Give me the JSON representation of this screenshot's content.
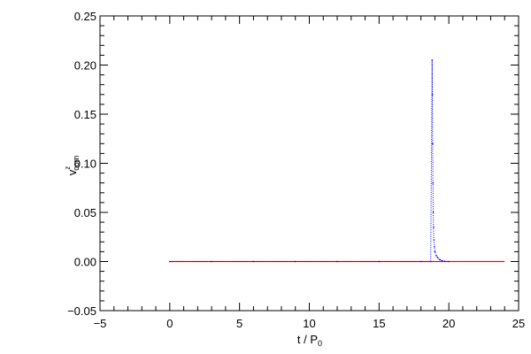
{
  "chart_data": {
    "type": "line",
    "title": "",
    "xlabel": {
      "base": "t / P",
      "subscript": "0"
    },
    "ylabel": {
      "base": "v",
      "superscript": "z",
      "subscript": "com"
    },
    "xlim": [
      -5,
      25
    ],
    "ylim": [
      -0.05,
      0.25
    ],
    "xticks": [
      "−5",
      "0",
      "5",
      "10",
      "15",
      "20",
      "25"
    ],
    "yticks": [
      "−0.05",
      "0.00",
      "0.05",
      "0.10",
      "0.15",
      "0.20",
      "0.25"
    ],
    "grid": false,
    "legend": "none",
    "series": [
      {
        "color": "#ff0000",
        "style": "line",
        "x": [
          0,
          24
        ],
        "y": [
          0,
          0
        ]
      },
      {
        "color": "#0000ff",
        "style": "dots",
        "x": [
          0,
          3,
          6,
          9,
          12,
          15,
          18,
          18.7,
          18.8,
          18.82,
          18.84,
          18.86,
          18.88,
          18.9,
          18.93,
          18.96,
          19.0,
          19.1,
          19.2,
          19.35,
          19.5,
          19.7,
          20.0
        ],
        "y": [
          0,
          0,
          0,
          0,
          0,
          0,
          0,
          0,
          0.205,
          0.17,
          0.12,
          0.08,
          0.05,
          0.035,
          0.022,
          0.015,
          0.01,
          0.006,
          0.004,
          0.002,
          0.001,
          0.0003,
          0
        ]
      }
    ]
  }
}
